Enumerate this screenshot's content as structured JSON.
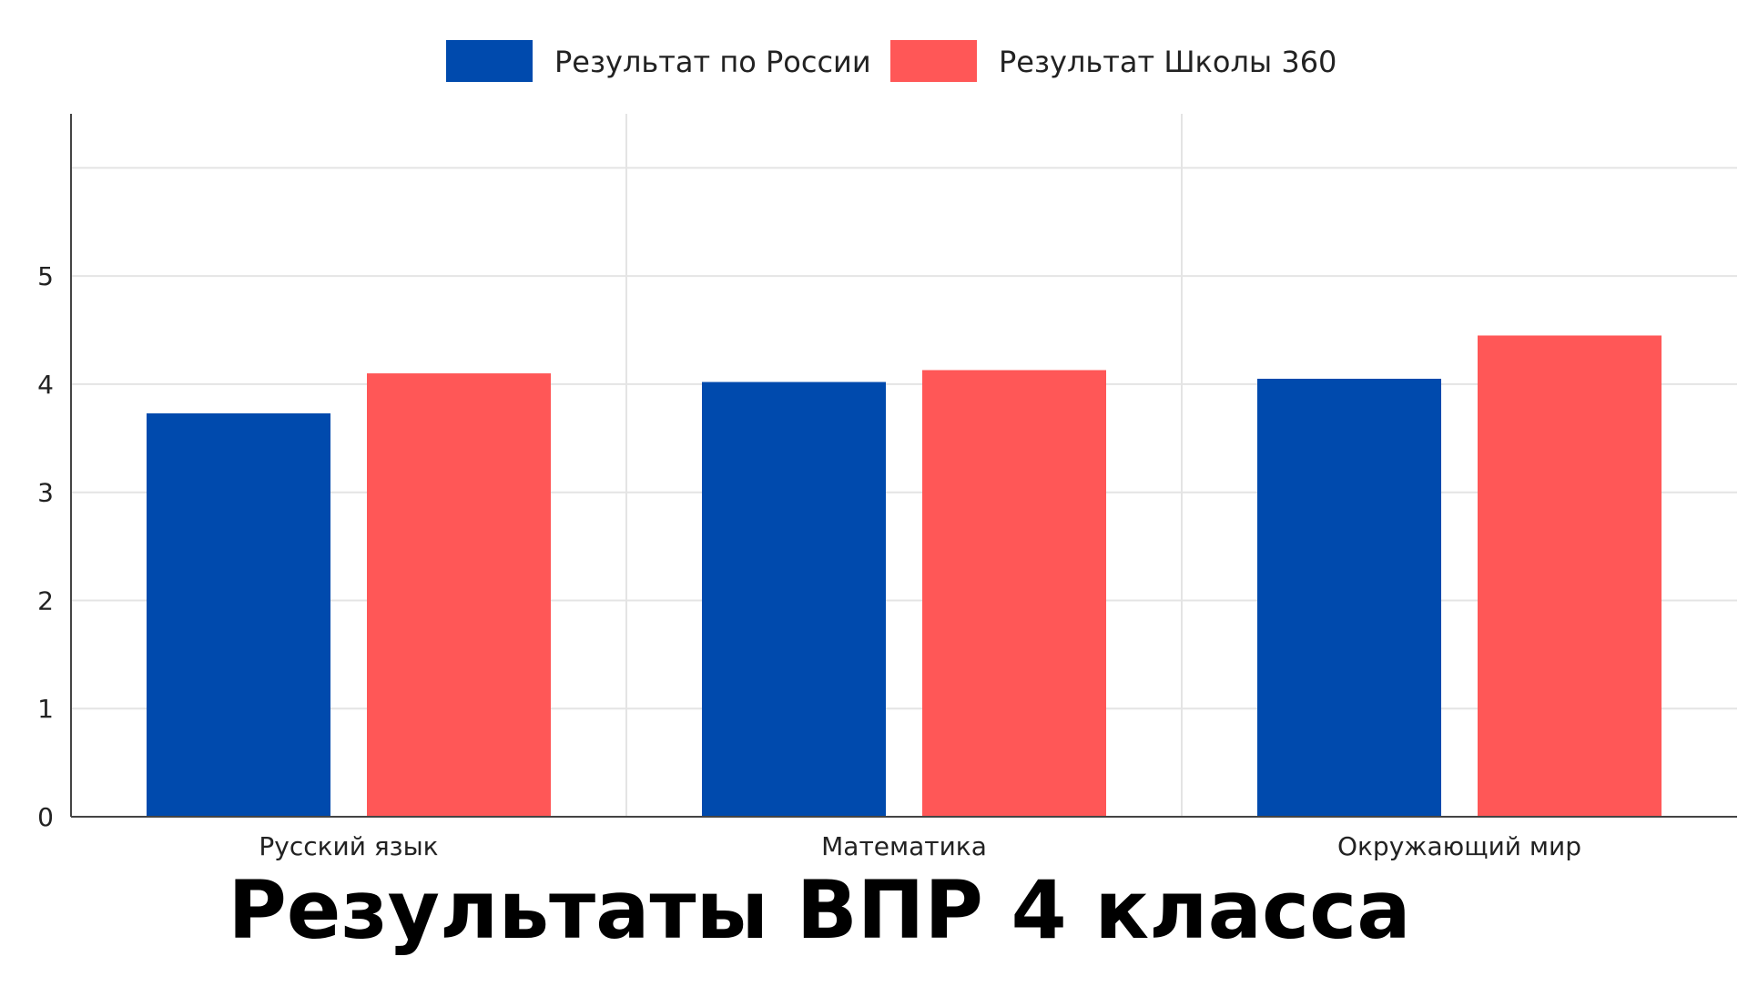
{
  "chart_data": {
    "type": "bar",
    "title": "Результаты ВПР 4 класса",
    "categories": [
      "Русский язык",
      "Математика",
      "Окружающий мир"
    ],
    "series": [
      {
        "name": "Результат по России",
        "values": [
          3.73,
          4.02,
          4.05
        ],
        "color": "#004AAD"
      },
      {
        "name": "Результат Школы 360",
        "values": [
          4.1,
          4.13,
          4.45
        ],
        "color": "#FF5757"
      }
    ],
    "ylim": [
      0,
      6.5
    ],
    "y_ticks": [
      0,
      1,
      2,
      3,
      4,
      5
    ],
    "grid": true,
    "legend_position": "top-center",
    "xlabel": "",
    "ylabel": ""
  }
}
